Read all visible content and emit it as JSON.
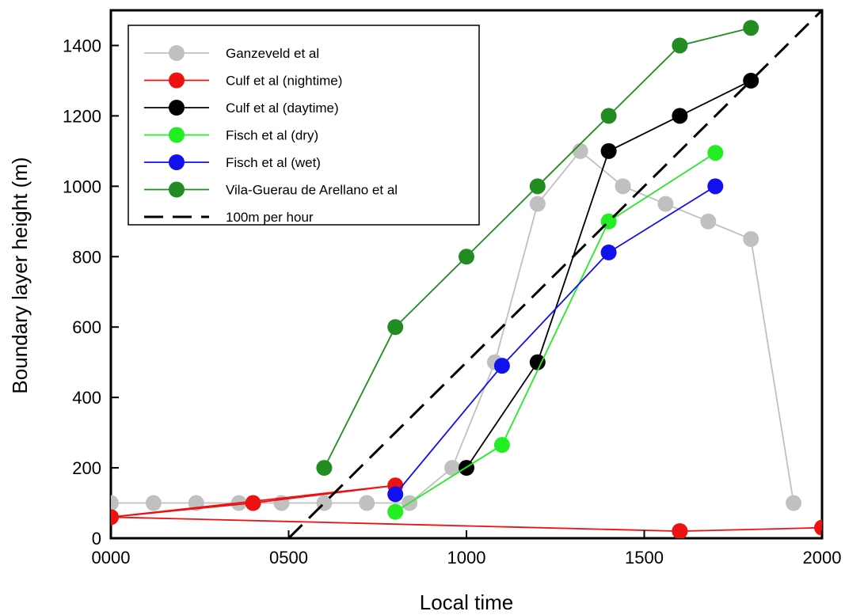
{
  "chart_data": {
    "type": "line",
    "xlabel": "Local time",
    "ylabel": "Boundary layer height (m)",
    "xlim": [
      0,
      2000
    ],
    "ylim": [
      0,
      1500
    ],
    "x_ticks": [
      {
        "value": 0,
        "label": "0000"
      },
      {
        "value": 500,
        "label": "0500"
      },
      {
        "value": 1000,
        "label": "1000"
      },
      {
        "value": 1500,
        "label": "1500"
      },
      {
        "value": 2000,
        "label": "2000"
      }
    ],
    "y_ticks": [
      {
        "value": 0,
        "label": "0"
      },
      {
        "value": 200,
        "label": "200"
      },
      {
        "value": 400,
        "label": "400"
      },
      {
        "value": 600,
        "label": "600"
      },
      {
        "value": 800,
        "label": "800"
      },
      {
        "value": 1000,
        "label": "1000"
      },
      {
        "value": 1200,
        "label": "1200"
      },
      {
        "value": 1400,
        "label": "1400"
      }
    ],
    "grid": false,
    "legend_position": "top-left",
    "series": [
      {
        "name": "Ganzeveld et al",
        "color": "#c0c0c0",
        "markers": true,
        "dashed": false,
        "points": [
          [
            0,
            100
          ],
          [
            120,
            100
          ],
          [
            240,
            100
          ],
          [
            360,
            100
          ],
          [
            480,
            100
          ],
          [
            600,
            100
          ],
          [
            720,
            100
          ],
          [
            840,
            100
          ],
          [
            960,
            200
          ],
          [
            1080,
            500
          ],
          [
            1200,
            950
          ],
          [
            1320,
            1100
          ],
          [
            1440,
            1000
          ],
          [
            1560,
            950
          ],
          [
            1680,
            900
          ],
          [
            1800,
            850
          ],
          [
            1920,
            100
          ]
        ]
      },
      {
        "name": "Culf et al (nightime)",
        "color": "#ee1111",
        "markers": true,
        "dashed": false,
        "points": [
          [
            0,
            60
          ],
          [
            400,
            100
          ],
          [
            800,
            150
          ],
          [
            0,
            60
          ],
          [
            1600,
            20
          ],
          [
            2000,
            30
          ],
          [
            1600,
            20
          ]
        ]
      },
      {
        "name": "Culf et al (daytime)",
        "color": "#000000",
        "markers": true,
        "dashed": false,
        "points": [
          [
            1000,
            200
          ],
          [
            1200,
            500
          ],
          [
            1400,
            1100
          ],
          [
            1600,
            1200
          ],
          [
            1800,
            1300
          ]
        ]
      },
      {
        "name": "Fisch et al (dry)",
        "color": "#22ee22",
        "markers": true,
        "dashed": false,
        "points": [
          [
            800,
            75
          ],
          [
            1100,
            265
          ],
          [
            1400,
            900
          ],
          [
            1700,
            1095
          ]
        ]
      },
      {
        "name": "Fisch et al (wet)",
        "color": "#1111ee",
        "markers": true,
        "dashed": false,
        "points": [
          [
            800,
            125
          ],
          [
            1100,
            490
          ],
          [
            1400,
            812
          ],
          [
            1700,
            1000
          ]
        ]
      },
      {
        "name": "Vila-Guerau de Arellano et al",
        "color": "#228b22",
        "markers": true,
        "dashed": false,
        "points": [
          [
            600,
            200
          ],
          [
            800,
            600
          ],
          [
            1000,
            800
          ],
          [
            1200,
            1000
          ],
          [
            1400,
            1200
          ],
          [
            1600,
            1400
          ],
          [
            1800,
            1450
          ]
        ]
      },
      {
        "name": "100m per hour",
        "color": "#000000",
        "markers": false,
        "dashed": true,
        "points": [
          [
            500,
            0
          ],
          [
            2000,
            1500
          ]
        ]
      }
    ]
  }
}
